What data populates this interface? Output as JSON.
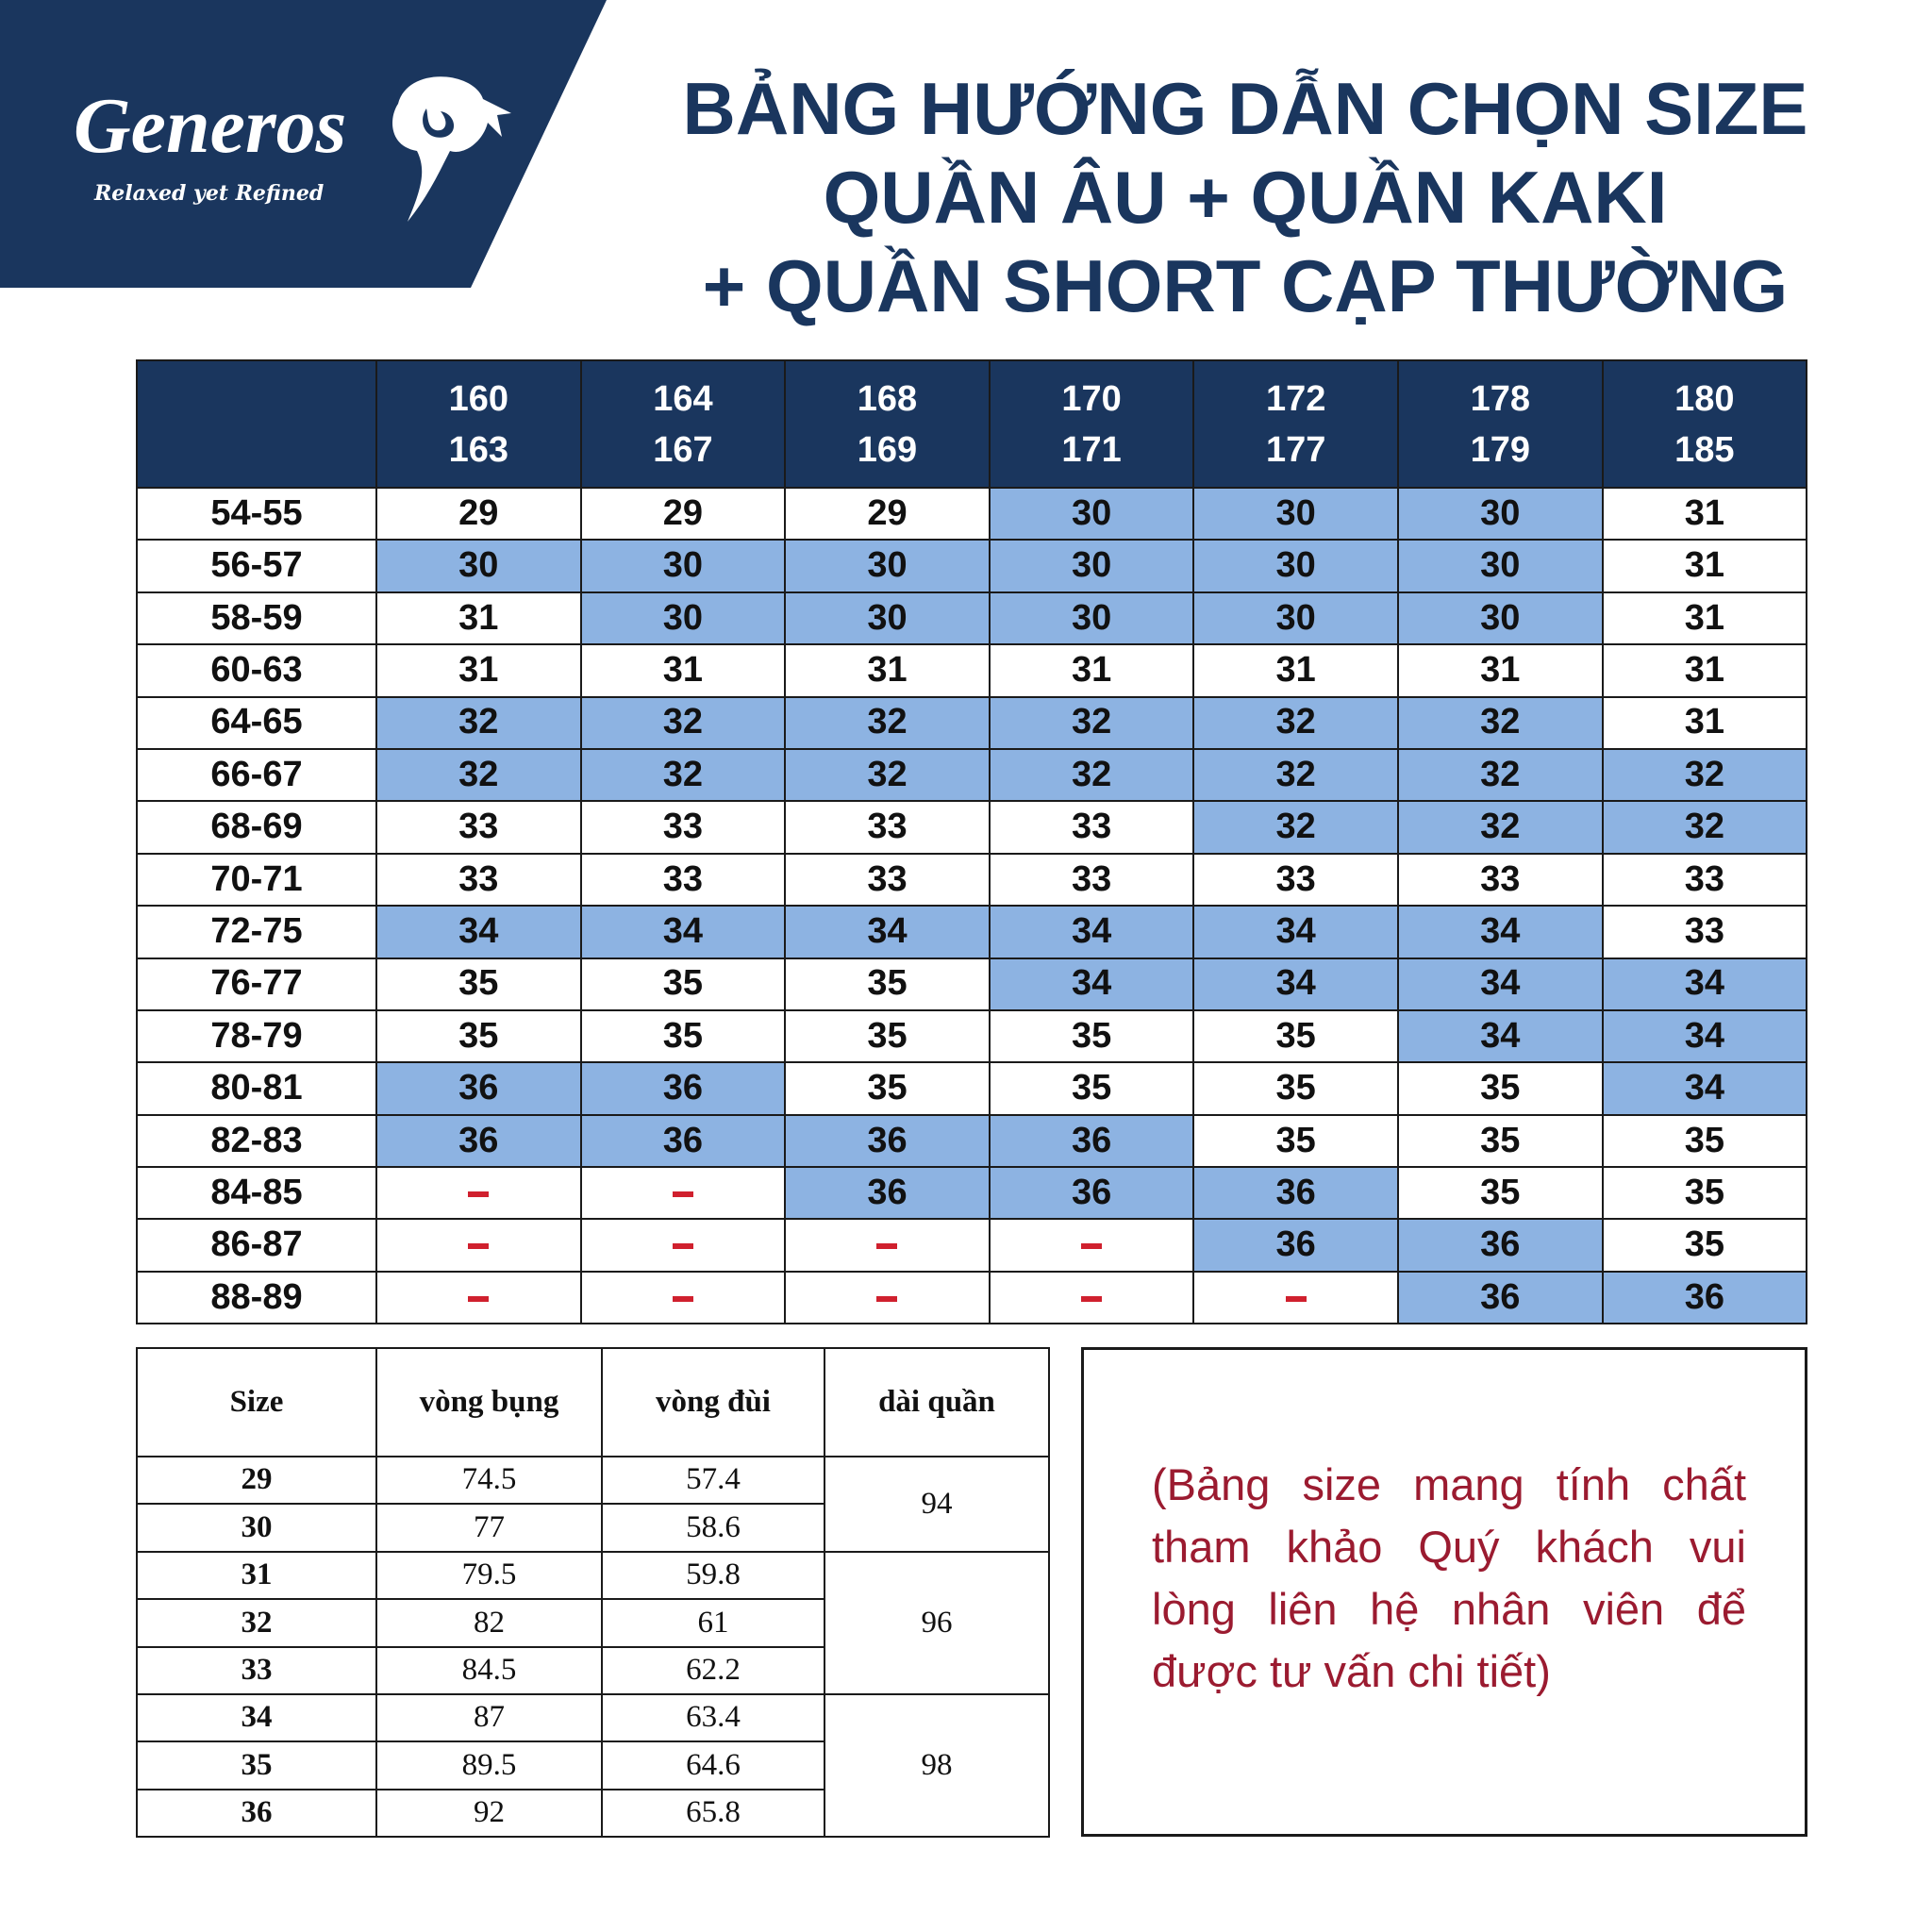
{
  "logo": {
    "brand": "Generos",
    "tagline": "Relaxed yet Refined"
  },
  "title": [
    "BẢNG HƯỚNG DẪN CHỌN SIZE",
    "QUẦN ÂU + QUẦN KAKI",
    "+ QUẦN SHORT CẠP THƯỜNG"
  ],
  "colors": {
    "navy": "#1a365e",
    "highlight": "#8db3e2",
    "dash": "#d0202e",
    "note": "#9b1b30"
  },
  "main_table": {
    "corner": "",
    "height_columns": [
      [
        "160",
        "163"
      ],
      [
        "164",
        "167"
      ],
      [
        "168",
        "169"
      ],
      [
        "170",
        "171"
      ],
      [
        "172",
        "177"
      ],
      [
        "178",
        "179"
      ],
      [
        "180",
        "185"
      ]
    ],
    "rows": [
      {
        "weight": "54-55",
        "values": [
          "29",
          "29",
          "29",
          "30",
          "30",
          "30",
          "31"
        ],
        "highlight": [
          0,
          0,
          0,
          1,
          1,
          1,
          0
        ]
      },
      {
        "weight": "56-57",
        "values": [
          "30",
          "30",
          "30",
          "30",
          "30",
          "30",
          "31"
        ],
        "highlight": [
          1,
          1,
          1,
          1,
          1,
          1,
          0
        ]
      },
      {
        "weight": "58-59",
        "values": [
          "31",
          "30",
          "30",
          "30",
          "30",
          "30",
          "31"
        ],
        "highlight": [
          0,
          1,
          1,
          1,
          1,
          1,
          0
        ]
      },
      {
        "weight": "60-63",
        "values": [
          "31",
          "31",
          "31",
          "31",
          "31",
          "31",
          "31"
        ],
        "highlight": [
          0,
          0,
          0,
          0,
          0,
          0,
          0
        ]
      },
      {
        "weight": "64-65",
        "values": [
          "32",
          "32",
          "32",
          "32",
          "32",
          "32",
          "31"
        ],
        "highlight": [
          1,
          1,
          1,
          1,
          1,
          1,
          0
        ]
      },
      {
        "weight": "66-67",
        "values": [
          "32",
          "32",
          "32",
          "32",
          "32",
          "32",
          "32"
        ],
        "highlight": [
          1,
          1,
          1,
          1,
          1,
          1,
          1
        ]
      },
      {
        "weight": "68-69",
        "values": [
          "33",
          "33",
          "33",
          "33",
          "32",
          "32",
          "32"
        ],
        "highlight": [
          0,
          0,
          0,
          0,
          1,
          1,
          1
        ]
      },
      {
        "weight": "70-71",
        "values": [
          "33",
          "33",
          "33",
          "33",
          "33",
          "33",
          "33"
        ],
        "highlight": [
          0,
          0,
          0,
          0,
          0,
          0,
          0
        ]
      },
      {
        "weight": "72-75",
        "values": [
          "34",
          "34",
          "34",
          "34",
          "34",
          "34",
          "33"
        ],
        "highlight": [
          1,
          1,
          1,
          1,
          1,
          1,
          0
        ]
      },
      {
        "weight": "76-77",
        "values": [
          "35",
          "35",
          "35",
          "34",
          "34",
          "34",
          "34"
        ],
        "highlight": [
          0,
          0,
          0,
          1,
          1,
          1,
          1
        ]
      },
      {
        "weight": "78-79",
        "values": [
          "35",
          "35",
          "35",
          "35",
          "35",
          "34",
          "34"
        ],
        "highlight": [
          0,
          0,
          0,
          0,
          0,
          1,
          1
        ]
      },
      {
        "weight": "80-81",
        "values": [
          "36",
          "36",
          "35",
          "35",
          "35",
          "35",
          "34"
        ],
        "highlight": [
          1,
          1,
          0,
          0,
          0,
          0,
          1
        ]
      },
      {
        "weight": "82-83",
        "values": [
          "36",
          "36",
          "36",
          "36",
          "35",
          "35",
          "35"
        ],
        "highlight": [
          1,
          1,
          1,
          1,
          0,
          0,
          0
        ]
      },
      {
        "weight": "84-85",
        "values": [
          "-",
          "-",
          "36",
          "36",
          "36",
          "35",
          "35"
        ],
        "highlight": [
          0,
          0,
          1,
          1,
          1,
          0,
          0
        ]
      },
      {
        "weight": "86-87",
        "values": [
          "-",
          "-",
          "-",
          "-",
          "36",
          "36",
          "35"
        ],
        "highlight": [
          0,
          0,
          0,
          0,
          1,
          1,
          0
        ]
      },
      {
        "weight": "88-89",
        "values": [
          "-",
          "-",
          "-",
          "-",
          "-",
          "36",
          "36"
        ],
        "highlight": [
          0,
          0,
          0,
          0,
          0,
          1,
          1
        ]
      }
    ]
  },
  "size_table": {
    "headers": [
      "Size",
      "vòng bụng",
      "vòng đùi",
      "dài quần"
    ],
    "rows": [
      {
        "size": "29",
        "waist": "74.5",
        "thigh": "57.4"
      },
      {
        "size": "30",
        "waist": "77",
        "thigh": "58.6"
      },
      {
        "size": "31",
        "waist": "79.5",
        "thigh": "59.8"
      },
      {
        "size": "32",
        "waist": "82",
        "thigh": "61"
      },
      {
        "size": "33",
        "waist": "84.5",
        "thigh": "62.2"
      },
      {
        "size": "34",
        "waist": "87",
        "thigh": "63.4"
      },
      {
        "size": "35",
        "waist": "89.5",
        "thigh": "64.6"
      },
      {
        "size": "36",
        "waist": "92",
        "thigh": "65.8"
      }
    ],
    "lengths": [
      {
        "value": "94",
        "span": 2
      },
      {
        "value": "96",
        "span": 3
      },
      {
        "value": "98",
        "span": 3
      }
    ]
  },
  "note": "(Bảng size mang tính chất tham khảo Quý khách vui lòng liên hệ nhân viên để được tư vấn chi tiết)"
}
